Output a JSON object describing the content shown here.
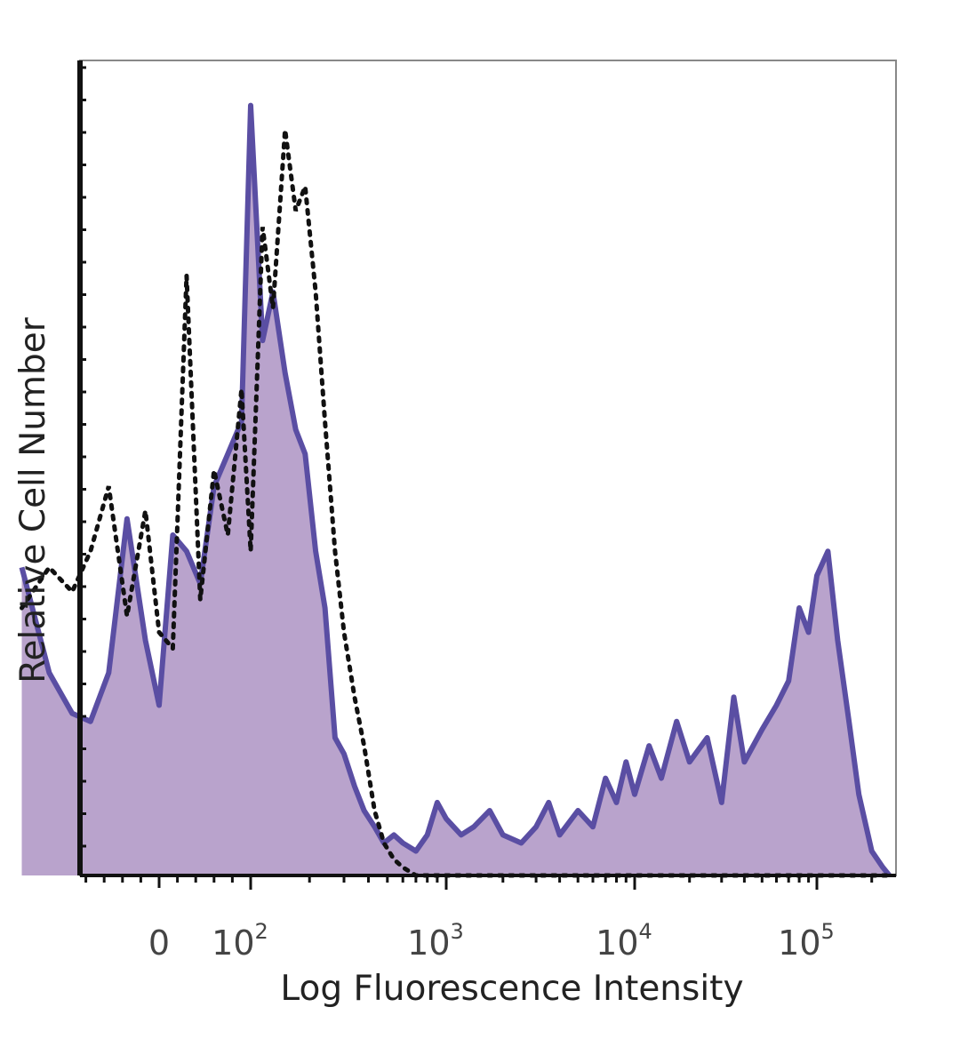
{
  "chart_data": {
    "type": "area",
    "title": "",
    "xlabel": "Log Fluorescence Intensity",
    "ylabel": "Relative Cell Number",
    "x_scale": "biexponential",
    "xlim": [
      -150,
      250000
    ],
    "ylim": [
      0,
      100
    ],
    "y_ticks_labeled": false,
    "x_ticks": [
      {
        "base": "0",
        "exp": "",
        "value": 0
      },
      {
        "base": "10",
        "exp": "2",
        "value": 100
      },
      {
        "base": "10",
        "exp": "3",
        "value": 1000
      },
      {
        "base": "10",
        "exp": "4",
        "value": 10000
      },
      {
        "base": "10",
        "exp": "5",
        "value": 100000
      }
    ],
    "series": [
      {
        "style": "filled",
        "color": "#5a4ea3",
        "fill": "#b9a3cc",
        "x": [
          -150,
          -120,
          -95,
          -75,
          -55,
          -35,
          -15,
          0,
          15,
          30,
          45,
          60,
          75,
          90,
          100,
          115,
          130,
          150,
          170,
          190,
          215,
          240,
          270,
          300,
          340,
          380,
          430,
          480,
          540,
          600,
          700,
          800,
          900,
          1000,
          1200,
          1400,
          1700,
          2000,
          2500,
          3000,
          3500,
          4000,
          5000,
          6000,
          7000,
          8000,
          9000,
          10000,
          12000,
          14000,
          17000,
          20000,
          25000,
          30000,
          35000,
          40000,
          50000,
          60000,
          70000,
          80000,
          90000,
          100000,
          115000,
          130000,
          150000,
          170000,
          200000,
          230000,
          250000
        ],
        "values": [
          38,
          25,
          20,
          19,
          25,
          44,
          29,
          21,
          42,
          40,
          36,
          48,
          52,
          56,
          95,
          66,
          72,
          62,
          55,
          52,
          40,
          33,
          17,
          15,
          11,
          8,
          6,
          4,
          5,
          4,
          3,
          5,
          9,
          7,
          5,
          6,
          8,
          5,
          4,
          6,
          9,
          5,
          8,
          6,
          12,
          9,
          14,
          10,
          16,
          12,
          19,
          14,
          17,
          9,
          22,
          14,
          18,
          21,
          24,
          33,
          30,
          37,
          40,
          29,
          19,
          10,
          3,
          1,
          0
        ]
      },
      {
        "style": "dotted",
        "color": "#111111",
        "x": [
          -150,
          -120,
          -95,
          -75,
          -55,
          -35,
          -15,
          0,
          15,
          30,
          45,
          60,
          75,
          90,
          100,
          115,
          130,
          150,
          170,
          190,
          215,
          240,
          270,
          300,
          340,
          380,
          430,
          480,
          540,
          600,
          700,
          800,
          900,
          1000,
          1500,
          2000,
          5000,
          10000,
          30000,
          60000,
          100000,
          150000,
          250000
        ],
        "values": [
          33,
          38,
          35,
          40,
          48,
          32,
          45,
          30,
          28,
          74,
          34,
          50,
          42,
          60,
          40,
          80,
          70,
          92,
          82,
          85,
          72,
          56,
          40,
          30,
          22,
          16,
          8,
          4,
          2,
          1,
          0,
          0,
          0,
          0,
          0,
          0,
          0,
          0,
          0,
          0,
          0,
          0,
          0
        ]
      }
    ]
  }
}
